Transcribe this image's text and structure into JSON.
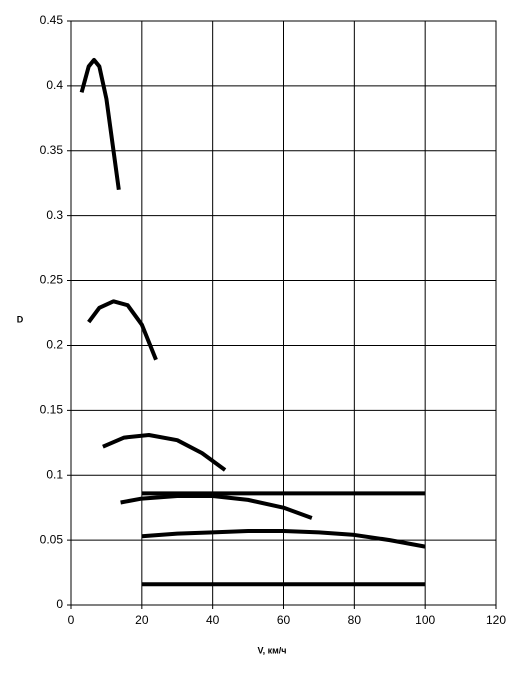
{
  "chart_data": {
    "type": "line",
    "xlabel": "V, км/ч",
    "ylabel": "D",
    "xlim": [
      0,
      120
    ],
    "xticks": [
      0,
      20,
      40,
      60,
      80,
      100,
      120
    ],
    "ylim": [
      0,
      0.45
    ],
    "yticks": [
      0,
      0.05,
      0.1,
      0.15,
      0.2,
      0.25,
      0.3,
      0.35,
      0.4,
      0.45
    ],
    "grid": true,
    "series": [
      {
        "color": "#000000",
        "x": [
          3,
          5,
          6.5,
          8,
          10,
          12,
          13.5
        ],
        "values": [
          0.395,
          0.415,
          0.42,
          0.415,
          0.39,
          0.35,
          0.32
        ]
      },
      {
        "color": "#000000",
        "x": [
          5,
          8,
          12,
          16,
          20,
          24
        ],
        "values": [
          0.218,
          0.229,
          0.234,
          0.231,
          0.216,
          0.189
        ]
      },
      {
        "color": "#000000",
        "x": [
          9,
          15,
          22,
          30,
          37,
          43.5
        ],
        "values": [
          0.122,
          0.129,
          0.131,
          0.127,
          0.117,
          0.104
        ]
      },
      {
        "color": "#000000",
        "x": [
          14,
          20,
          30,
          40,
          50,
          60,
          68
        ],
        "values": [
          0.079,
          0.082,
          0.084,
          0.084,
          0.081,
          0.075,
          0.067
        ]
      },
      {
        "color": "#000000",
        "x": [
          20,
          30,
          40,
          50,
          60,
          70,
          80,
          90,
          100
        ],
        "values": [
          0.053,
          0.055,
          0.056,
          0.057,
          0.057,
          0.056,
          0.054,
          0.05,
          0.045
        ]
      },
      {
        "color": "#000000",
        "x": [
          20,
          100
        ],
        "values": [
          0.086,
          0.086
        ]
      },
      {
        "color": "#000000",
        "x": [
          20,
          100
        ],
        "values": [
          0.016,
          0.016
        ]
      }
    ]
  }
}
